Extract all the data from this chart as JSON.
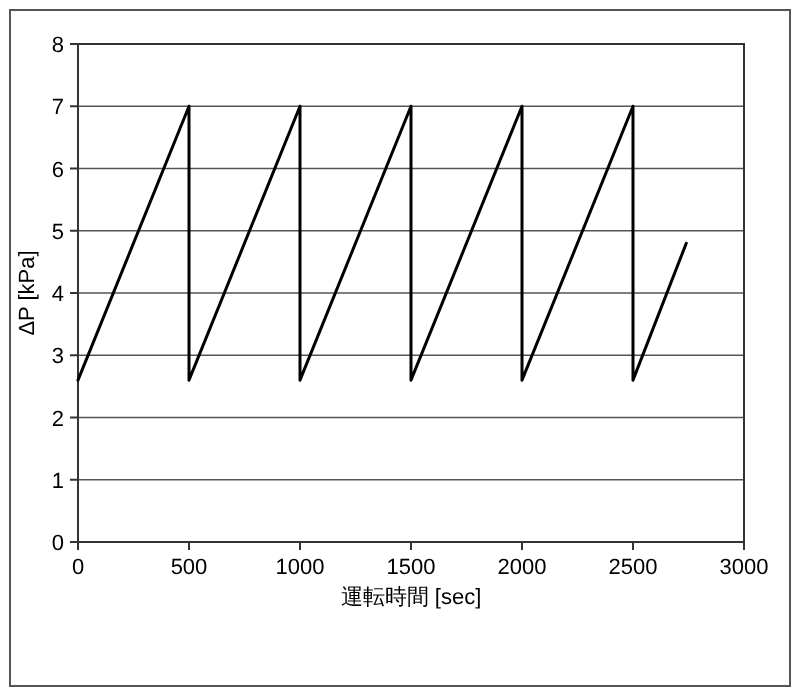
{
  "chart_data": {
    "type": "line",
    "xlabel": "運転時間 [sec]",
    "ylabel": "ΔP [kPa]",
    "x": [
      0,
      500,
      500,
      1000,
      1000,
      1500,
      1500,
      2000,
      2000,
      2500,
      2500,
      2740
    ],
    "series": [
      {
        "color": "#000000",
        "values": [
          2.6,
          7,
          2.6,
          7,
          2.6,
          7,
          2.6,
          7,
          2.6,
          7,
          2.6,
          4.8
        ]
      }
    ],
    "xlim": [
      0,
      3000
    ],
    "ylim": [
      0,
      8
    ],
    "xticks": [
      0,
      500,
      1000,
      1500,
      2000,
      2500,
      3000
    ],
    "yticks": [
      0,
      1,
      2,
      3,
      4,
      5,
      6,
      7,
      8
    ],
    "grid": "y"
  }
}
